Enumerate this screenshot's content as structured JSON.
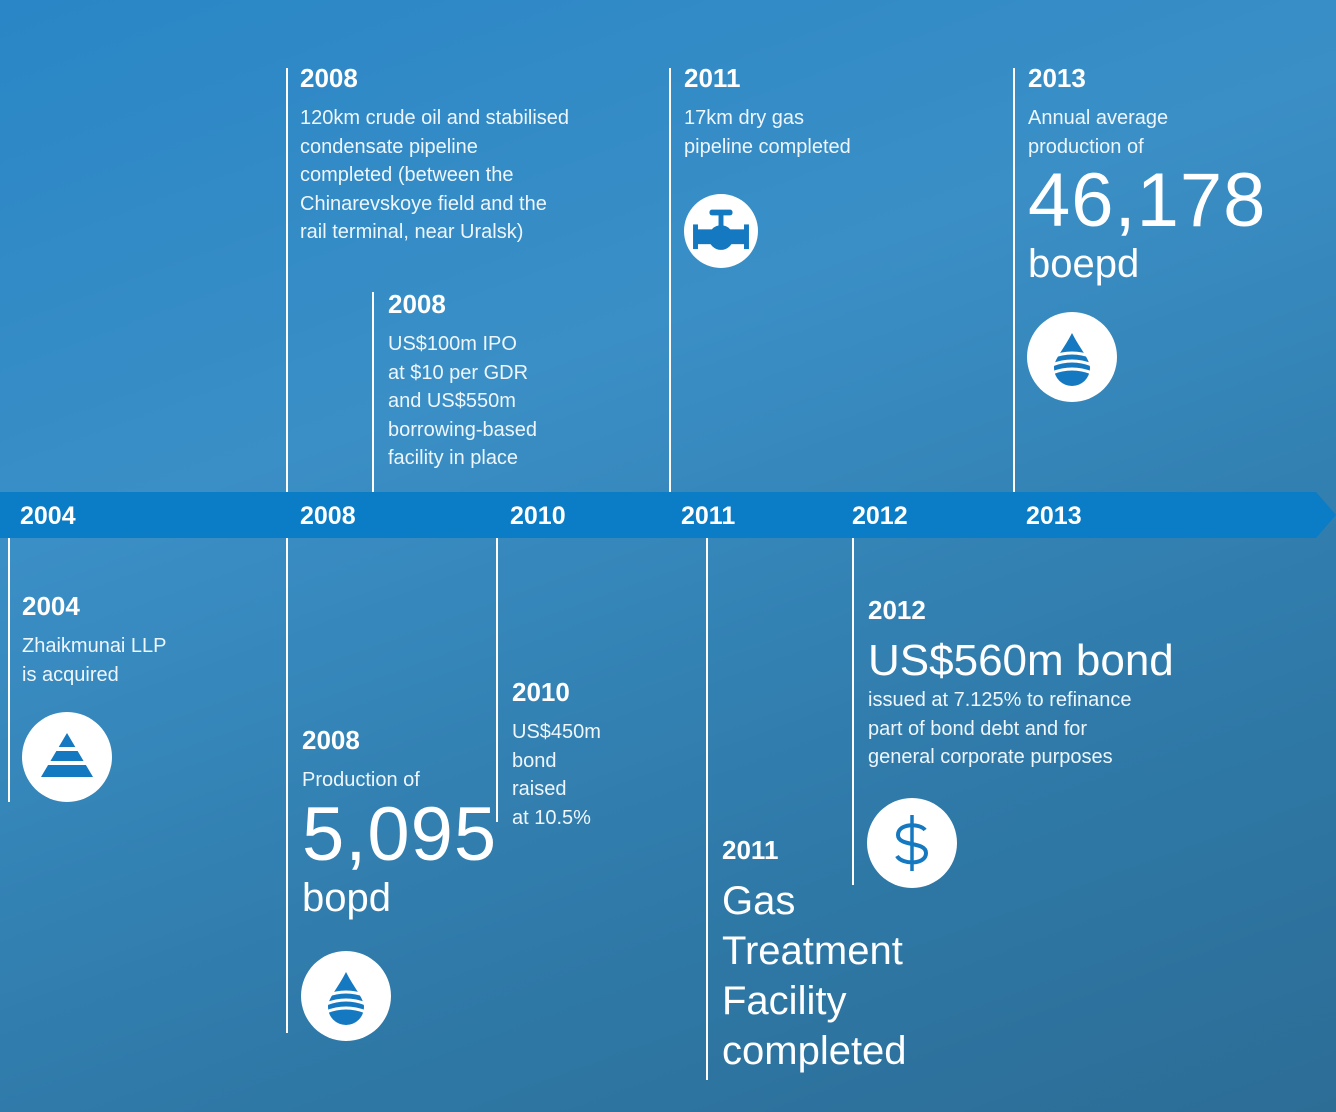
{
  "timeline": {
    "years": [
      "2004",
      "2008",
      "2010",
      "2011",
      "2012",
      "2013"
    ]
  },
  "events": [
    {
      "year": "2008",
      "text": [
        "120km crude oil and stabilised",
        "condensate pipeline",
        "completed (between the",
        "Chinarevskoye field and the",
        "rail terminal, near Uralsk)"
      ]
    },
    {
      "year": "2008",
      "text": [
        "US$100m IPO",
        "at $10 per GDR",
        "and US$550m",
        "borrowing-based",
        "facility in place"
      ]
    },
    {
      "year": "2011",
      "text": [
        "17km dry gas",
        "pipeline completed"
      ]
    },
    {
      "year": "2013",
      "text": [
        "Annual average",
        "production of"
      ],
      "figure": "46,178",
      "unit": "boepd"
    },
    {
      "year": "2004",
      "text": [
        "Zhaikmunai LLP",
        "is acquired"
      ]
    },
    {
      "year": "2008",
      "text": [
        "Production of"
      ],
      "figure": "5,095",
      "unit": "bopd"
    },
    {
      "year": "2010",
      "text": [
        "US$450m",
        "bond",
        "raised",
        "at 10.5%"
      ]
    },
    {
      "year": "2011",
      "headline": [
        "Gas",
        "Treatment",
        "Facility",
        "completed"
      ]
    },
    {
      "year": "2012",
      "headline": [
        "US$560m bond"
      ],
      "text": [
        "issued at 7.125% to refinance",
        "part of bond debt and for",
        "general corporate purposes"
      ]
    }
  ]
}
